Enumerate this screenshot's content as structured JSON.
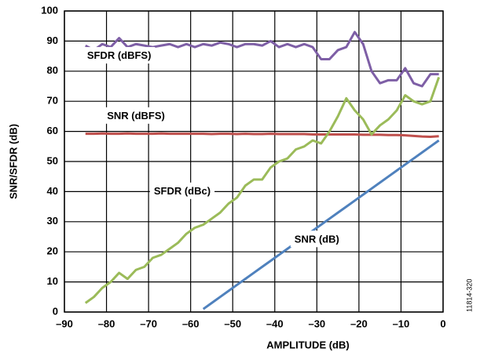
{
  "chart_data": {
    "type": "line",
    "x_label": "AMPLITUDE (dB)",
    "y_label": "SNR/SFDR (dB)",
    "figure_id": "11814-320",
    "x": [
      -85,
      -83,
      -81,
      -79,
      -77,
      -75,
      -73,
      -71,
      -69,
      -67,
      -65,
      -63,
      -61,
      -59,
      -57,
      -55,
      -53,
      -51,
      -49,
      -47,
      -45,
      -43,
      -41,
      -39,
      -37,
      -35,
      -33,
      -31,
      -29,
      -27,
      -25,
      -23,
      -21,
      -19,
      -17,
      -15,
      -13,
      -11,
      -9,
      -7,
      -5,
      -3,
      -1
    ],
    "series": [
      {
        "name": "SFDR (dBFS)",
        "color": "#7e5fa6",
        "values": [
          88.5,
          87,
          89,
          88,
          91,
          88,
          89,
          88.5,
          88,
          88.5,
          89,
          88,
          89,
          88,
          89,
          88.5,
          89.5,
          89,
          88,
          89,
          89,
          88.5,
          90,
          88,
          89,
          88,
          89,
          88,
          84,
          84,
          87,
          88,
          93,
          89,
          80,
          76,
          77,
          77,
          81,
          76,
          75,
          79,
          79
        ]
      },
      {
        "name": "SNR (dBFS)",
        "color": "#c0504d",
        "values": [
          59.2,
          59.2,
          59.3,
          59.2,
          59.2,
          59.3,
          59.2,
          59.2,
          59.2,
          59.3,
          59.2,
          59.2,
          59.2,
          59.2,
          59.2,
          59.1,
          59.2,
          59.2,
          59.1,
          59.2,
          59.1,
          59.1,
          59.2,
          59.1,
          59.1,
          59.1,
          59.1,
          59,
          59,
          59,
          59,
          59,
          59,
          58.9,
          58.9,
          58.9,
          58.8,
          58.8,
          58.7,
          58.5,
          58.3,
          58.2,
          58.4
        ]
      },
      {
        "name": "SFDR (dBc)",
        "color": "#9bbb59",
        "values": [
          3,
          5,
          8,
          10,
          13,
          11,
          14,
          15,
          18,
          19,
          21,
          23,
          26,
          28,
          29,
          31,
          33,
          36,
          38,
          42,
          44,
          44,
          48,
          50,
          51,
          54,
          55,
          57,
          56,
          60,
          65,
          71,
          67,
          64,
          59,
          62,
          64,
          67,
          72,
          70,
          69,
          70,
          78
        ]
      },
      {
        "name": "SNR (dB)",
        "color": "#4f81bd",
        "values": [
          null,
          null,
          null,
          null,
          null,
          null,
          null,
          null,
          null,
          null,
          null,
          null,
          null,
          null,
          1,
          3,
          5,
          7,
          9,
          11,
          13,
          15,
          17,
          19,
          21,
          23,
          25,
          27,
          29,
          31,
          33,
          35,
          37,
          39,
          41,
          43,
          45,
          47,
          49,
          51,
          53,
          55,
          57
        ]
      }
    ],
    "xlim": [
      -90,
      0
    ],
    "xticks": [
      {
        "value": -90,
        "label": "–90"
      },
      {
        "value": -80,
        "label": "–80"
      },
      {
        "value": -70,
        "label": "–70"
      },
      {
        "value": -60,
        "label": "–60"
      },
      {
        "value": -50,
        "label": "–50"
      },
      {
        "value": -40,
        "label": "–40"
      },
      {
        "value": -30,
        "label": "–30"
      },
      {
        "value": -20,
        "label": "–20"
      },
      {
        "value": -10,
        "label": "–10"
      },
      0
    ],
    "ylim": [
      0,
      100
    ],
    "yticks": [
      0,
      10,
      20,
      30,
      40,
      50,
      60,
      70,
      80,
      90,
      100
    ],
    "grid": true
  }
}
